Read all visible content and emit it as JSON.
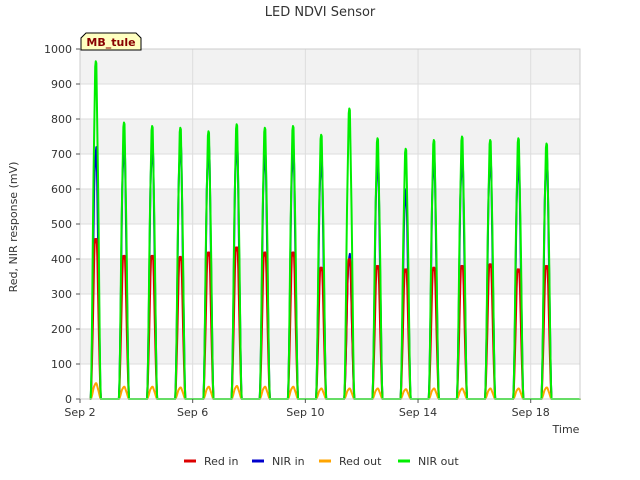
{
  "chart_data": {
    "type": "line",
    "title": "LED NDVI Sensor",
    "xlabel": "Time",
    "ylabel": "Red, NIR response (mV)",
    "ylim": [
      0,
      1000
    ],
    "yticks": [
      0,
      100,
      200,
      300,
      400,
      500,
      600,
      700,
      800,
      900,
      1000
    ],
    "xlim": [
      "2024-09-02",
      "2024-09-19T18:00"
    ],
    "xticks": [
      {
        "date": "2024-09-02",
        "label": "Sep 2"
      },
      {
        "date": "2024-09-06",
        "label": "Sep 6"
      },
      {
        "date": "2024-09-10",
        "label": "Sep 10"
      },
      {
        "date": "2024-09-14",
        "label": "Sep 14"
      },
      {
        "date": "2024-09-18",
        "label": "Sep 18"
      }
    ],
    "grid": true,
    "legend_position": "bottom",
    "annotation": {
      "text": "MB_tule",
      "position": "top-left"
    },
    "peak_days": [
      "Sep 2",
      "Sep 3",
      "Sep 4",
      "Sep 5",
      "Sep 6",
      "Sep 7",
      "Sep 8",
      "Sep 9",
      "Sep 10",
      "Sep 11",
      "Sep 12",
      "Sep 13",
      "Sep 14",
      "Sep 15",
      "Sep 16",
      "Sep 17",
      "Sep 18",
      "Sep 19"
    ],
    "series": [
      {
        "name": "Red in",
        "color": "#dd0000",
        "daily_peak": [
          475,
          425,
          425,
          422,
          435,
          450,
          435,
          435,
          390,
          415,
          395,
          385,
          390,
          395,
          400,
          385,
          395,
          0
        ]
      },
      {
        "name": "NIR in",
        "color": "#0000cc",
        "daily_peak": [
          720,
          730,
          730,
          735,
          725,
          735,
          710,
          715,
          690,
          415,
          685,
          600,
          690,
          690,
          690,
          680,
          690,
          0
        ]
      },
      {
        "name": "Red out",
        "color": "#ffa500",
        "daily_peak": [
          45,
          35,
          35,
          33,
          35,
          37,
          35,
          35,
          30,
          30,
          30,
          28,
          30,
          30,
          30,
          30,
          33,
          0
        ]
      },
      {
        "name": "NIR out",
        "color": "#00ee00",
        "daily_peak": [
          965,
          790,
          780,
          775,
          765,
          785,
          775,
          780,
          755,
          830,
          745,
          715,
          740,
          750,
          740,
          745,
          730,
          0
        ]
      }
    ]
  }
}
